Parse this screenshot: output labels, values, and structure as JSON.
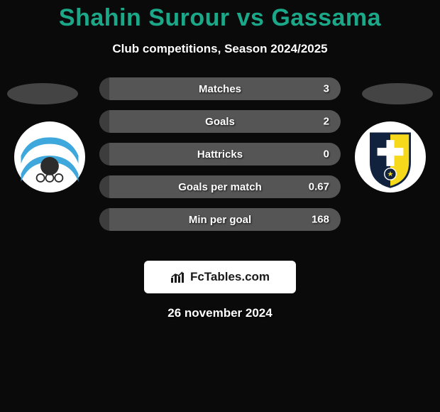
{
  "header": {
    "title": "Shahin Surour vs Gassama",
    "title_color": "#1aa889",
    "title_fontsize": 34,
    "subtitle": "Club competitions, Season 2024/2025",
    "subtitle_color": "#ffffff",
    "background_color": "#0a0a0a"
  },
  "player_left": {
    "ellipse_color": "#444444",
    "badge_bg": "#ffffff",
    "club_colors": {
      "sky": "#3ea8dc",
      "white": "#ffffff",
      "dark": "#2c2c2c"
    }
  },
  "player_right": {
    "ellipse_color": "#444444",
    "badge_bg": "#ffffff",
    "club_colors": {
      "yellow": "#f5d91a",
      "navy": "#11223f",
      "white": "#ffffff"
    }
  },
  "stats": {
    "row_bg": "#555555",
    "left_fill_color": "#3d3d3d",
    "label_color": "#ffffff",
    "value_color": "#ffffff",
    "left_fill_pct": 4,
    "rows": [
      {
        "label": "Matches",
        "value_right": "3"
      },
      {
        "label": "Goals",
        "value_right": "2"
      },
      {
        "label": "Hattricks",
        "value_right": "0"
      },
      {
        "label": "Goals per match",
        "value_right": "0.67"
      },
      {
        "label": "Min per goal",
        "value_right": "168"
      }
    ]
  },
  "footer": {
    "brand": "FcTables.com",
    "brand_color": "#1a1a1a",
    "badge_bg": "#ffffff",
    "icon_color": "#1a1a1a",
    "date": "26 november 2024",
    "date_color": "#ffffff"
  }
}
